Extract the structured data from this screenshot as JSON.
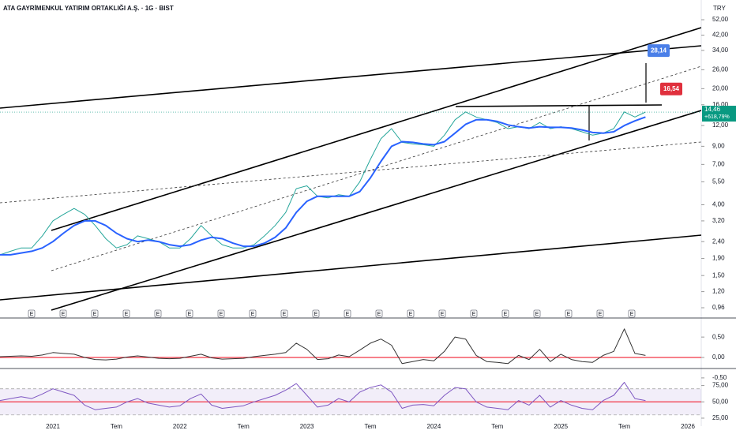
{
  "chart_data": [
    {
      "type": "line",
      "title": "ATA GAYRİMENKUL YATIRIM ORTAKLIĞI A.Ş. · 1G · BIST",
      "currency": "TRY",
      "log_scale": true,
      "grid": false,
      "categories": [
        null,
        null,
        null,
        null,
        null,
        "2021",
        null,
        null,
        null,
        null,
        null,
        "Tem",
        null,
        null,
        null,
        null,
        null,
        "2022",
        null,
        null,
        null,
        null,
        null,
        "Tem",
        null,
        null,
        null,
        null,
        null,
        "2023",
        null,
        null,
        null,
        null,
        null,
        "Tem",
        null,
        null,
        null,
        null,
        null,
        "2024",
        null,
        null,
        null,
        null,
        null,
        "Tem",
        null,
        null,
        null,
        null,
        null,
        "2025",
        null,
        null,
        null,
        null,
        null,
        "Tem",
        null,
        null,
        null,
        null,
        null,
        "2026",
        null
      ],
      "series": [
        {
          "color": "#26a69a",
          "values": [
            2.0,
            2.1,
            2.2,
            2.2,
            2.6,
            3.2,
            3.5,
            3.8,
            3.5,
            3.0,
            2.5,
            2.2,
            2.3,
            2.6,
            2.5,
            2.4,
            2.2,
            2.2,
            2.5,
            3.0,
            2.6,
            2.3,
            2.2,
            2.2,
            2.3,
            2.6,
            3.0,
            3.6,
            5.0,
            5.2,
            4.5,
            4.4,
            4.6,
            4.5,
            5.5,
            7.5,
            10.0,
            11.5,
            9.5,
            9.3,
            9.2,
            9.0,
            10.5,
            13.0,
            14.5,
            13.5,
            13.0,
            12.5,
            11.5,
            11.8,
            11.5,
            12.5,
            11.5,
            11.8,
            11.5,
            11.0,
            10.5,
            10.8,
            11.5,
            14.5,
            13.5,
            14.46,
            null,
            null,
            null,
            null,
            null
          ]
        },
        {
          "color": "#2962ff",
          "values": [
            2.0,
            2.0,
            2.05,
            2.1,
            2.2,
            2.4,
            2.7,
            3.0,
            3.2,
            3.2,
            3.0,
            2.7,
            2.5,
            2.4,
            2.45,
            2.4,
            2.3,
            2.25,
            2.3,
            2.45,
            2.55,
            2.5,
            2.35,
            2.25,
            2.25,
            2.35,
            2.55,
            2.9,
            3.6,
            4.2,
            4.5,
            4.5,
            4.5,
            4.5,
            4.8,
            5.8,
            7.3,
            9.0,
            9.6,
            9.5,
            9.3,
            9.2,
            9.6,
            10.8,
            12.2,
            13.0,
            13.0,
            12.7,
            12.1,
            11.8,
            11.6,
            11.8,
            11.7,
            11.7,
            11.6,
            11.3,
            10.9,
            10.8,
            11.0,
            12.0,
            12.8,
            13.5,
            null,
            null,
            null,
            null,
            null
          ]
        }
      ],
      "ylim": [
        0.96,
        52
      ],
      "yticks": [
        {
          "value": 52,
          "label": "52,00"
        },
        {
          "value": 42,
          "label": "42,00"
        },
        {
          "value": 34,
          "label": "34,00"
        },
        {
          "value": 26,
          "label": "26,00"
        },
        {
          "value": 20,
          "label": "20,00"
        },
        {
          "value": 16,
          "label": "16,00"
        },
        {
          "value": 12,
          "label": "12,00"
        },
        {
          "value": 9,
          "label": "9,00"
        },
        {
          "value": 7,
          "label": "7,00"
        },
        {
          "value": 5.5,
          "label": "5,50"
        },
        {
          "value": 4,
          "label": "4,00"
        },
        {
          "value": 3.2,
          "label": "3,20"
        },
        {
          "value": 2.4,
          "label": "2,40"
        },
        {
          "value": 1.9,
          "label": "1,90"
        },
        {
          "value": 1.5,
          "label": "1,50"
        },
        {
          "value": 1.2,
          "label": "1,20"
        },
        {
          "value": 0.96,
          "label": "0,96"
        }
      ],
      "last_price": {
        "value": 14.46,
        "label": "14,46",
        "color": "#089981"
      },
      "change": {
        "value": 618.79,
        "label": "+618,79%"
      },
      "annotations": [
        {
          "value": 28.14,
          "label": "28,14",
          "color": "#4a7fe8"
        },
        {
          "value": 16.54,
          "label": "16,54",
          "color": "#e0303d"
        }
      ],
      "earnings": [
        "E",
        "E",
        "E",
        "E",
        "E",
        "E",
        "E",
        "E",
        "E",
        "E",
        "E",
        "E",
        "E",
        "E",
        "E",
        "E",
        "E",
        "E",
        "E",
        "E"
      ]
    },
    {
      "type": "line",
      "series": [
        {
          "color": "#333333",
          "values": [
            0.02,
            0.03,
            0.04,
            0.03,
            0.06,
            0.12,
            0.1,
            0.08,
            0.0,
            -0.05,
            -0.06,
            -0.04,
            0.01,
            0.04,
            0.01,
            -0.02,
            -0.03,
            -0.02,
            0.03,
            0.08,
            -0.01,
            -0.04,
            -0.03,
            -0.02,
            0.02,
            0.05,
            0.08,
            0.12,
            0.35,
            0.2,
            -0.05,
            -0.03,
            0.06,
            0.02,
            0.18,
            0.35,
            0.45,
            0.3,
            -0.15,
            -0.1,
            -0.05,
            -0.08,
            0.15,
            0.5,
            0.45,
            0.05,
            -0.1,
            -0.12,
            -0.15,
            0.05,
            -0.05,
            0.2,
            -0.1,
            0.08,
            -0.05,
            -0.1,
            -0.12,
            0.05,
            0.15,
            0.7,
            0.1,
            0.05,
            null,
            null,
            null,
            null,
            null
          ]
        }
      ],
      "ylim": [
        -0.27,
        0.87
      ],
      "yticks": [
        {
          "value": 0.5,
          "label": "0,50"
        },
        {
          "value": 0,
          "label": "0,00"
        },
        {
          "value": -0.5,
          "label": "-0,50"
        }
      ],
      "reference_line": {
        "value": 0,
        "color": "#f23645"
      }
    },
    {
      "type": "line",
      "series": [
        {
          "color": "#7e57c2",
          "values": [
            52,
            55,
            58,
            55,
            62,
            70,
            65,
            60,
            45,
            38,
            40,
            42,
            50,
            55,
            48,
            45,
            42,
            44,
            55,
            62,
            45,
            40,
            42,
            44,
            50,
            55,
            60,
            68,
            78,
            60,
            42,
            45,
            55,
            50,
            65,
            72,
            76,
            65,
            40,
            45,
            46,
            44,
            60,
            72,
            70,
            50,
            42,
            40,
            38,
            52,
            45,
            60,
            42,
            52,
            45,
            40,
            38,
            52,
            60,
            80,
            55,
            52,
            null,
            null,
            null,
            null,
            null
          ]
        }
      ],
      "ylim": [
        22.5,
        97.5
      ],
      "yticks": [
        {
          "value": 75,
          "label": "75,00"
        },
        {
          "value": 50,
          "label": "50,00"
        },
        {
          "value": 25,
          "label": "25,00"
        }
      ],
      "reference_line": {
        "value": 50,
        "color": "#f23645"
      },
      "band": [
        30,
        70
      ]
    }
  ]
}
